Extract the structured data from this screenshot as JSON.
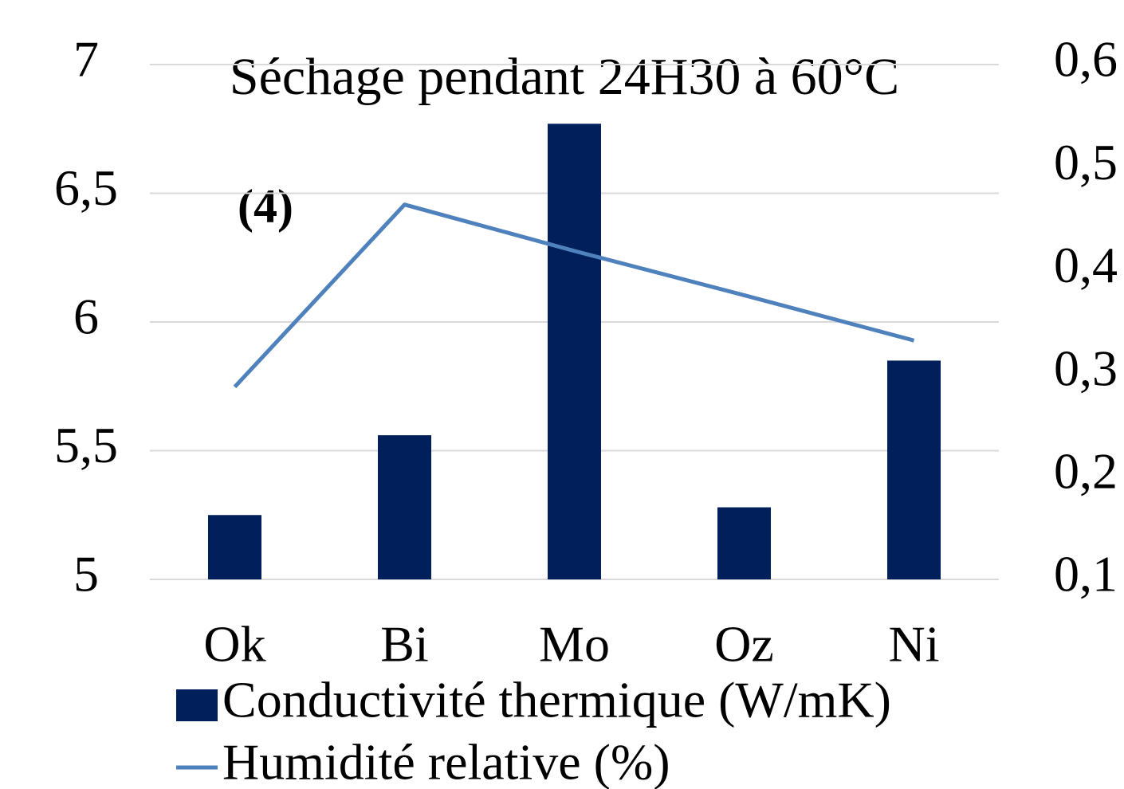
{
  "chart_data": {
    "type": "bar-line",
    "title": "Séchage pendant 24H30 à 60°C",
    "annotation": "(4)",
    "categories": [
      "Ok",
      "Bi",
      "Mo",
      "Oz",
      "Ni"
    ],
    "series": [
      {
        "name": "Conductivité thermique (W/mK)",
        "type": "bar",
        "color": "#001f5b",
        "values": [
          5.25,
          5.56,
          6.77,
          5.28,
          5.85
        ]
      },
      {
        "name": "Humidité relative (%)",
        "type": "line",
        "axis": "y2",
        "color": "#4f81bd",
        "values": [
          0.287,
          0.464,
          0.419,
          0.376,
          0.332
        ]
      }
    ],
    "ylim": [
      5,
      7
    ],
    "yticks": [
      5,
      {
        "value": 5.5,
        "label": "5,5"
      },
      6,
      {
        "value": 6.5,
        "label": "6,5"
      },
      7
    ],
    "y2lim": [
      0.1,
      0.6
    ],
    "y2ticks": [
      {
        "value": 0.1,
        "label": "0,1"
      },
      {
        "value": 0.2,
        "label": "0,2"
      },
      {
        "value": 0.3,
        "label": "0,3"
      },
      {
        "value": 0.4,
        "label": "0,4"
      },
      {
        "value": 0.5,
        "label": "0,5"
      },
      {
        "value": 0.6,
        "label": "0,6"
      }
    ],
    "grid": true,
    "legend": "bottom"
  }
}
